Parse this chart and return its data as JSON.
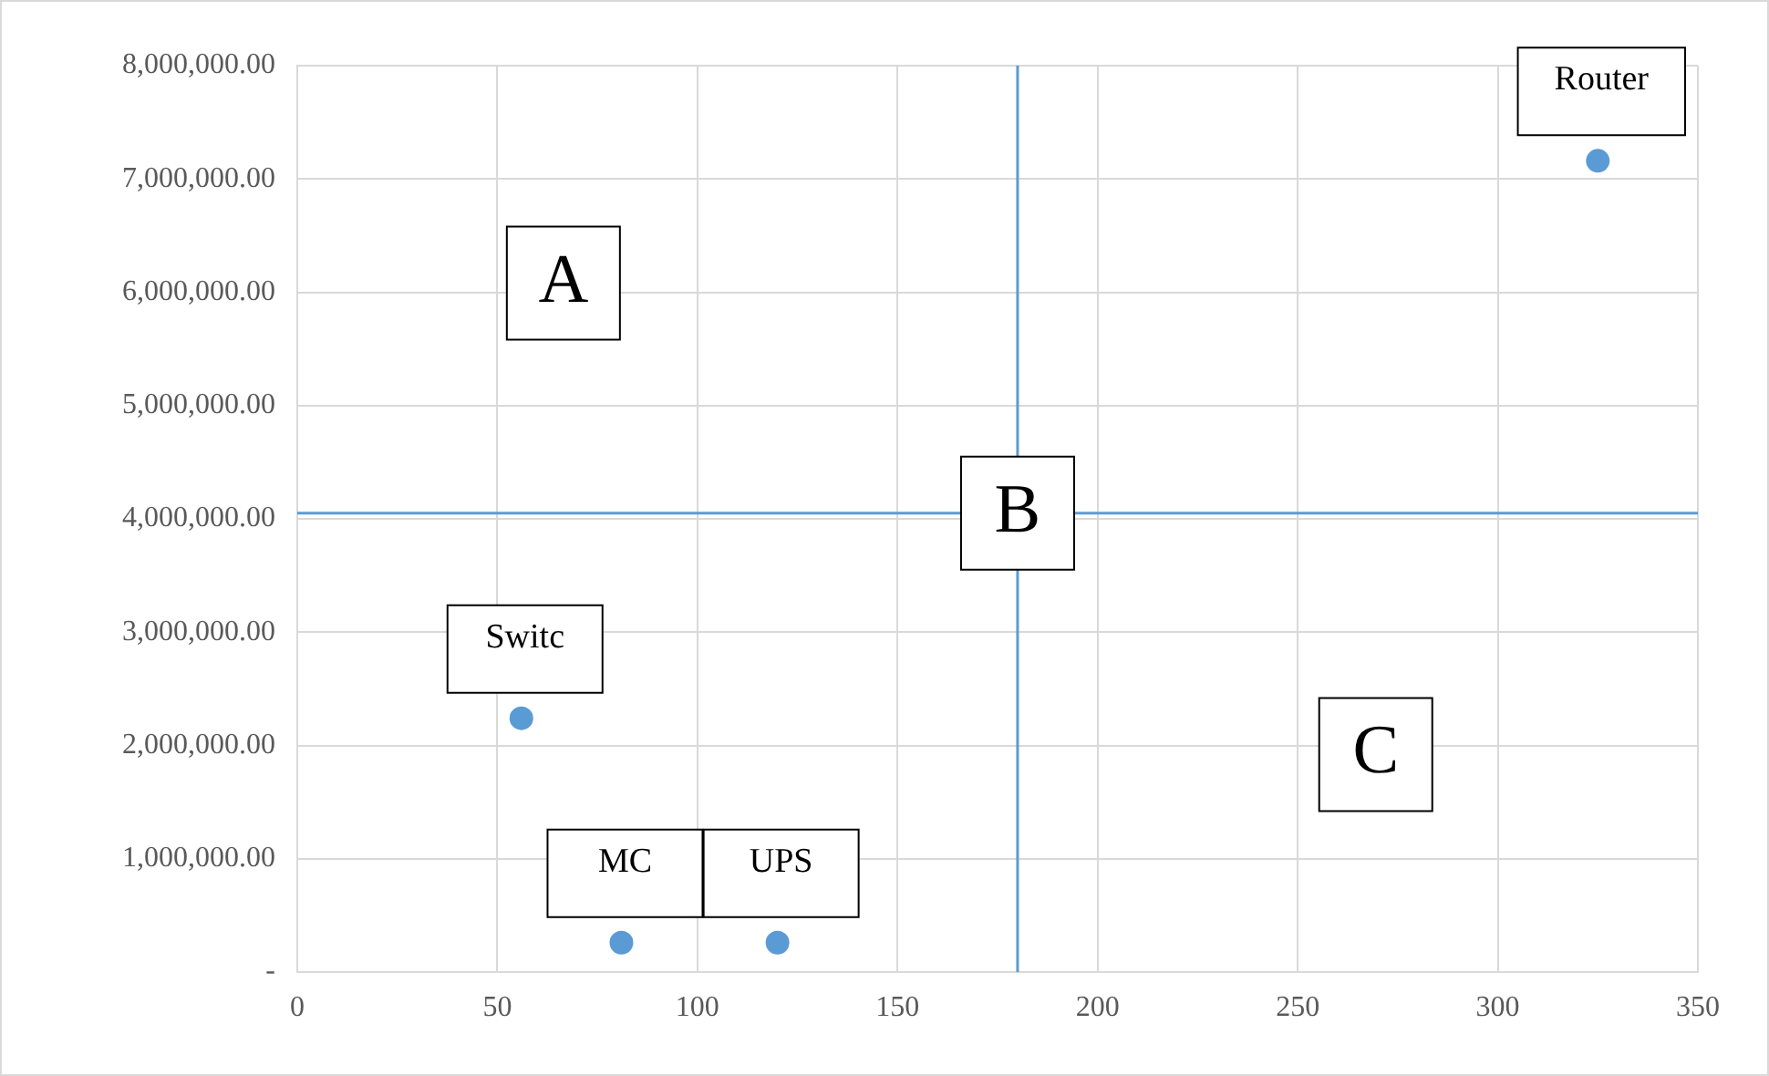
{
  "chart_data": {
    "type": "scatter",
    "x": [
      325,
      56,
      81,
      120
    ],
    "values": [
      7160000,
      2240000,
      260000,
      260000
    ],
    "color": "#5b9bd5",
    "marker": "circle",
    "grid": true,
    "legend": false,
    "xlim": [
      0,
      350
    ],
    "xticks": [
      0,
      50,
      100,
      150,
      200,
      250,
      300,
      350
    ],
    "ylim": [
      0,
      8000000
    ],
    "yticks": [
      {
        "value": 0,
        "label": "-"
      },
      {
        "value": 1000000,
        "label": "1,000,000.00"
      },
      {
        "value": 2000000,
        "label": "2,000,000.00"
      },
      {
        "value": 3000000,
        "label": "3,000,000.00"
      },
      {
        "value": 4000000,
        "label": "4,000,000.00"
      },
      {
        "value": 5000000,
        "label": "5,000,000.00"
      },
      {
        "value": 6000000,
        "label": "6,000,000.00"
      },
      {
        "value": 7000000,
        "label": "7,000,000.00"
      },
      {
        "value": 8000000,
        "label": "8,000,000.00"
      }
    ],
    "ref_lines": [
      {
        "axis": "x",
        "value": 180,
        "color": "#5b9bd5"
      },
      {
        "axis": "y",
        "value": 4050000,
        "color": "#5b9bd5"
      }
    ],
    "annotations": [
      {
        "text": "Router",
        "x": 325,
        "y": 7160000
      },
      {
        "text": "Switc",
        "x": 56,
        "y": 2240000
      },
      {
        "text": "MC",
        "x": 81,
        "y": 260000
      },
      {
        "text": "UPS",
        "x": 120,
        "y": 260000
      },
      "A",
      {
        "text": "B",
        "x": 180,
        "y": 4050000
      },
      "C"
    ]
  }
}
